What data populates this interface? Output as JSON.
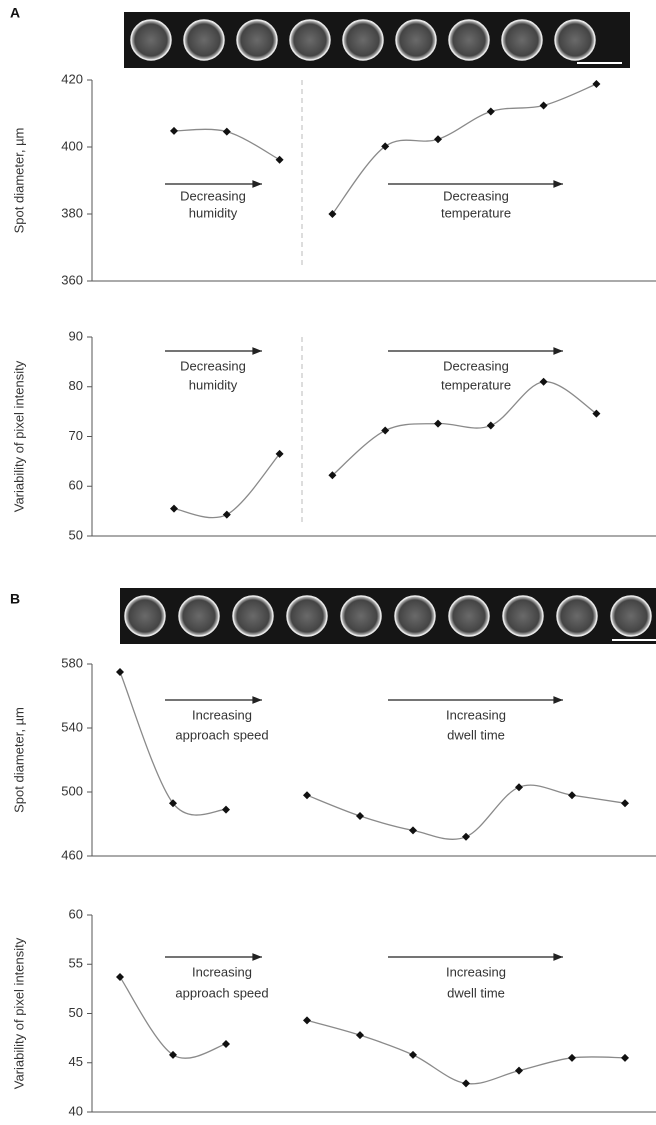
{
  "chart_data": [
    {
      "type": "line",
      "panel": "A",
      "ylabel": "Spot diameter, µm",
      "categories": [
        null,
        null,
        null,
        null,
        null,
        null,
        null,
        null,
        null
      ],
      "series": [
        {
          "color": "#8a8a8a",
          "marker_color": "#111111",
          "values": [
            404.8,
            404.6,
            396.2,
            null,
            null,
            null,
            null,
            null,
            null
          ]
        },
        {
          "color": "#8a8a8a",
          "marker_color": "#111111",
          "values": [
            null,
            null,
            null,
            380.0,
            400.2,
            402.3,
            410.6,
            412.4,
            418.8
          ]
        }
      ],
      "annotations": [
        [
          "Decreasing",
          "humidity"
        ],
        [
          "Decreasing",
          "temperature"
        ]
      ],
      "divider": true,
      "ylim": [
        360,
        420
      ],
      "yticks": [
        360,
        380,
        400,
        420
      ]
    },
    {
      "type": "line",
      "ylabel": "Variability of pixel intensity",
      "categories": [
        null,
        null,
        null,
        null,
        null,
        null,
        null,
        null,
        null
      ],
      "series": [
        {
          "color": "#8a8a8a",
          "marker_color": "#111111",
          "values": [
            55.5,
            54.3,
            66.5,
            null,
            null,
            null,
            null,
            null,
            null
          ]
        },
        {
          "color": "#8a8a8a",
          "marker_color": "#111111",
          "values": [
            null,
            null,
            null,
            62.2,
            71.2,
            72.6,
            72.2,
            81.0,
            74.6
          ]
        }
      ],
      "annotations": [
        [
          "Decreasing",
          "humidity"
        ],
        [
          "Decreasing",
          "temperature"
        ]
      ],
      "divider": true,
      "ylim": [
        50,
        90
      ],
      "yticks": [
        50,
        60,
        70,
        80,
        90
      ]
    },
    {
      "type": "line",
      "panel": "B",
      "ylabel": "Spot diameter, µm",
      "categories": [
        null,
        null,
        null,
        null,
        null,
        null,
        null,
        null,
        null,
        null
      ],
      "series": [
        {
          "color": "#8a8a8a",
          "marker_color": "#111111",
          "values": [
            575,
            493,
            489,
            null,
            null,
            null,
            null,
            null,
            null,
            null
          ]
        },
        {
          "color": "#8a8a8a",
          "marker_color": "#111111",
          "values": [
            null,
            null,
            null,
            498,
            485,
            476,
            472,
            503,
            498,
            493
          ]
        }
      ],
      "annotations": [
        [
          "Increasing",
          "approach speed"
        ],
        [
          "Increasing",
          "dwell time"
        ]
      ],
      "divider": false,
      "ylim": [
        460,
        580
      ],
      "yticks": [
        460,
        500,
        540,
        580
      ]
    },
    {
      "type": "line",
      "ylabel": "Variability of pixel intensity",
      "categories": [
        null,
        null,
        null,
        null,
        null,
        null,
        null,
        null,
        null,
        null
      ],
      "series": [
        {
          "color": "#8a8a8a",
          "marker_color": "#111111",
          "values": [
            53.7,
            45.8,
            46.9,
            null,
            null,
            null,
            null,
            null,
            null,
            null
          ]
        },
        {
          "color": "#8a8a8a",
          "marker_color": "#111111",
          "values": [
            null,
            null,
            null,
            49.3,
            47.8,
            45.8,
            42.9,
            44.2,
            45.5,
            45.5
          ]
        }
      ],
      "annotations": [
        [
          "Increasing",
          "approach speed"
        ],
        [
          "Increasing",
          "dwell time"
        ]
      ],
      "divider": false,
      "ylim": [
        40,
        60
      ],
      "yticks": [
        40,
        45,
        50,
        55,
        60
      ]
    }
  ]
}
